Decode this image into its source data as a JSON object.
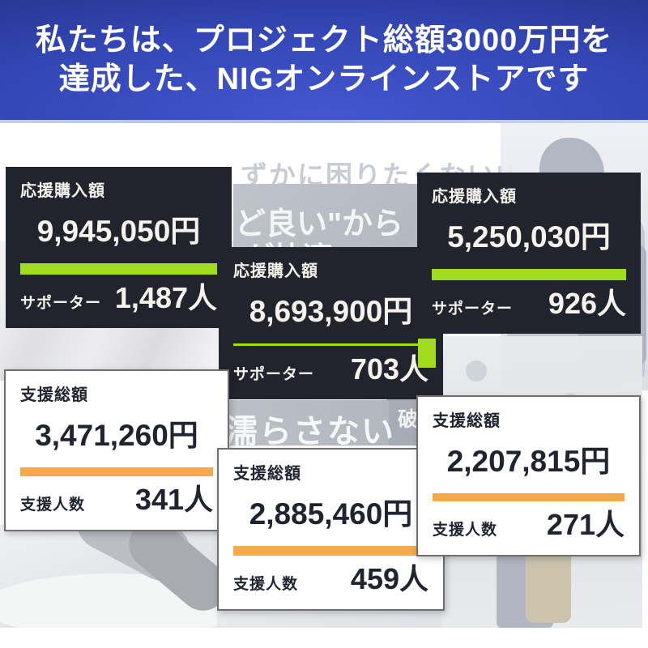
{
  "header": {
    "line1": "私たちは、プロジェクト総額3000万円を",
    "line2": "達成した、NIGオンラインストアです"
  },
  "makuake_cards": [
    {
      "label": "応援購入額",
      "amount": "9,945,050円",
      "supporter_label": "サポーター",
      "supporters": "1,487人"
    },
    {
      "label": "応援購入額",
      "amount": "8,693,900円",
      "supporter_label": "サポーター",
      "supporters": "703人"
    },
    {
      "label": "応援購入額",
      "amount": "5,250,030円",
      "supporter_label": "サポーター",
      "supporters": "926人"
    }
  ],
  "support_cards": [
    {
      "label": "支援総額",
      "amount": "3,471,260円",
      "supporter_label": "支援人数",
      "supporters": "341人"
    },
    {
      "label": "支援総額",
      "amount": "2,885,460円",
      "supporter_label": "支援人数",
      "supporters": "459人"
    },
    {
      "label": "支援総額",
      "amount": "2,207,815円",
      "supporter_label": "支援人数",
      "supporters": "271人"
    }
  ],
  "background_text": {
    "fragment_top": "ずかに困りたくない!!",
    "fragment_quote": "ど良い\"から",
    "fragment_comfort": "が快適",
    "fragment_wet": "濡らさない",
    "fragment_break": "破"
  },
  "colors": {
    "header_blue_center": "#3e54cb",
    "header_blue_edge": "#1d2a74",
    "dark_card_bg": "#21242c",
    "progress_green": "#a0dc1e",
    "progress_orange": "#f4aa4a",
    "dark_card_text": "#f5f3ec",
    "light_card_text": "#20242f"
  }
}
